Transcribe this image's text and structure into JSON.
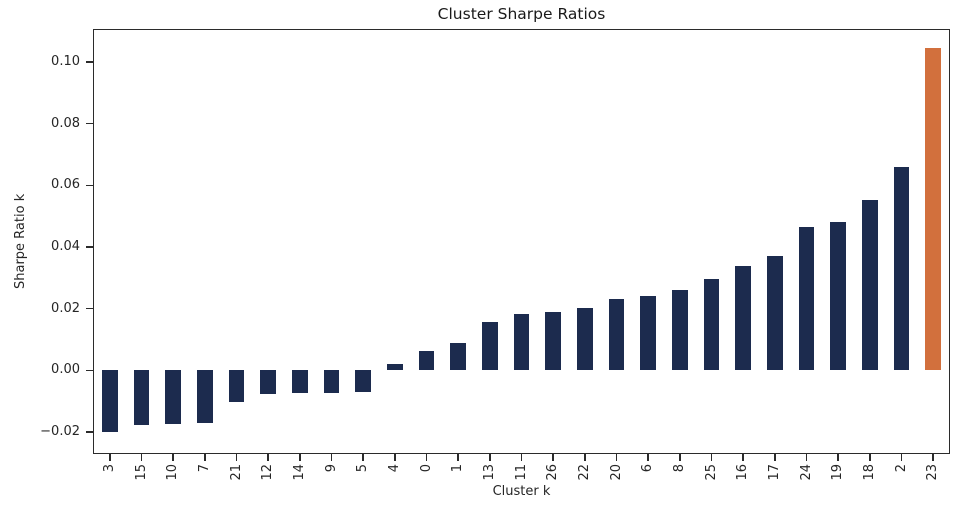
{
  "colors": {
    "bar": "#1c2b4e",
    "highlight": "#d2703d",
    "axis": "#2b2b2b",
    "text": "#262626",
    "background": "#ffffff"
  },
  "chart_data": {
    "type": "bar",
    "title": "Cluster Sharpe Ratios",
    "xlabel": "Cluster k",
    "ylabel": "Sharpe Ratio k",
    "categories": [
      "3",
      "15",
      "10",
      "7",
      "21",
      "12",
      "14",
      "9",
      "5",
      "4",
      "0",
      "1",
      "13",
      "11",
      "26",
      "22",
      "20",
      "6",
      "8",
      "25",
      "16",
      "17",
      "24",
      "19",
      "18",
      "2",
      "23"
    ],
    "values": [
      -0.0201,
      -0.0178,
      -0.0174,
      -0.0172,
      -0.0104,
      -0.0077,
      -0.0074,
      -0.0072,
      -0.0071,
      0.0022,
      0.0062,
      0.0088,
      0.0158,
      0.0182,
      0.0189,
      0.0201,
      0.0233,
      0.0241,
      0.026,
      0.0297,
      0.0338,
      0.0371,
      0.0466,
      0.0482,
      0.0553,
      0.066,
      0.1046
    ],
    "highlight_category": "23",
    "yticks": [
      -0.02,
      0.0,
      0.02,
      0.04,
      0.06,
      0.08,
      0.1
    ],
    "ytick_labels": [
      "−0.02",
      "0.00",
      "0.02",
      "0.04",
      "0.06",
      "0.08",
      "0.10"
    ],
    "ylim": [
      -0.0268,
      0.1104
    ],
    "bar_width_ratio": 0.5,
    "grid": false,
    "legend": null,
    "sorted": "ascending"
  }
}
